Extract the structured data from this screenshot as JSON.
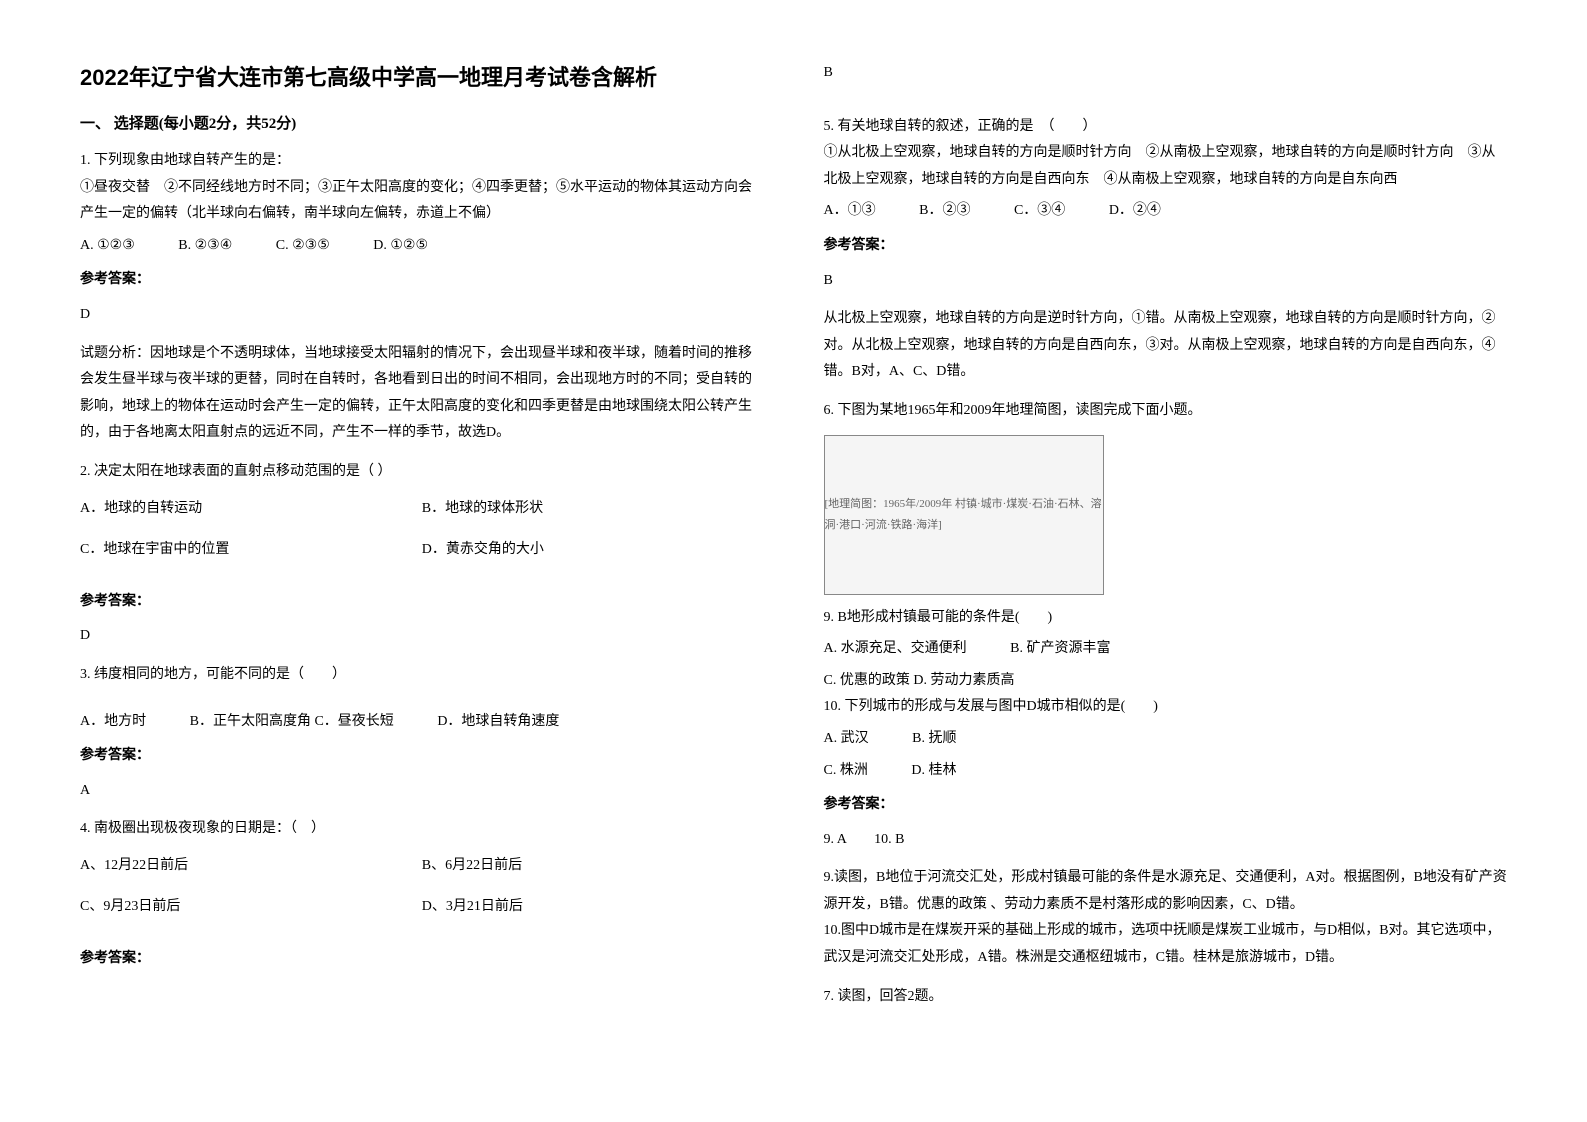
{
  "title": "2022年辽宁省大连市第七高级中学高一地理月考试卷含解析",
  "section_header": "一、 选择题(每小题2分，共52分)",
  "q1": {
    "stem": "1. 下列现象由地球自转产生的是：",
    "detail": "①昼夜交替　②不同经线地方时不同；③正午太阳高度的变化；④四季更替；⑤水平运动的物体其运动方向会产生一定的偏转（北半球向右偏转，南半球向左偏转，赤道上不偏）",
    "optA": "A. ①②③",
    "optB": "B. ②③④",
    "optC": "C. ②③⑤",
    "optD": "D. ①②⑤",
    "answer_label": "参考答案：",
    "answer": "D",
    "explanation": "试题分析：因地球是个不透明球体，当地球接受太阳辐射的情况下，会出现昼半球和夜半球，随着时间的推移会发生昼半球与夜半球的更替，同时在自转时，各地看到日出的时间不相同，会出现地方时的不同；受自转的影响，地球上的物体在运动时会产生一定的偏转，正午太阳高度的变化和四季更替是由地球围绕太阳公转产生的，由于各地离太阳直射点的远近不同，产生不一样的季节，故选D。"
  },
  "q2": {
    "stem": "2. 决定太阳在地球表面的直射点移动范围的是（ ）",
    "optA": "A．地球的自转运动",
    "optB": "B．地球的球体形状",
    "optC": "C．地球在宇宙中的位置",
    "optD": "D．黄赤交角的大小",
    "answer_label": "参考答案：",
    "answer": "D"
  },
  "q3": {
    "stem": "3. 纬度相同的地方，可能不同的是（　　）",
    "optA": "A．地方时",
    "optB": "B．正午太阳高度角",
    "optC": "C．昼夜长短",
    "optD": "D．地球自转角速度",
    "answer_label": "参考答案：",
    "answer": "A"
  },
  "q4": {
    "stem": "4. 南极圈出现极夜现象的日期是：（　）",
    "optA": "A、12月22日前后",
    "optB": "B、6月22日前后",
    "optC": "C、9月23日前后",
    "optD": "D、3月21日前后",
    "answer_label": "参考答案：",
    "answer": "B"
  },
  "q5": {
    "stem": "5. 有关地球自转的叙述，正确的是　（　　）",
    "detail": "①从北极上空观察，地球自转的方向是顺时针方向　②从南极上空观察，地球自转的方向是顺时针方向　③从北极上空观察，地球自转的方向是自西向东　④从南极上空观察，地球自转的方向是自东向西",
    "optA": "A．①③",
    "optB": "B．②③",
    "optC": "C．③④",
    "optD": "D．②④",
    "answer_label": "参考答案：",
    "answer": "B",
    "explanation": "从北极上空观察，地球自转的方向是逆时针方向，①错。从南极上空观察，地球自转的方向是顺时针方向，②对。从北极上空观察，地球自转的方向是自西向东，③对。从南极上空观察，地球自转的方向是自西向东，④错。B对，A、C、D错。"
  },
  "q6": {
    "stem": "6. 下图为某地1965年和2009年地理简图，读图完成下面小题。",
    "map_label": "[地理简图：1965年/2009年 村镇·城市·煤炭·石油·石林、溶洞·港口·河流·铁路·海洋]",
    "sub9_stem": "9. B地形成村镇最可能的条件是(　　)",
    "sub9_optA": "A. 水源充足、交通便利",
    "sub9_optB": "B. 矿产资源丰富",
    "sub9_optC": "C. 优惠的政策",
    "sub9_optD": "D. 劳动力素质高",
    "sub10_stem": "10. 下列城市的形成与发展与图中D城市相似的是(　　)",
    "sub10_optA": "A. 武汉",
    "sub10_optB": "B. 抚顺",
    "sub10_optC": "C. 株洲",
    "sub10_optD": "D. 桂林",
    "answer_label": "参考答案：",
    "answer": "9. A　　10. B",
    "explanation9": "9.读图，B地位于河流交汇处，形成村镇最可能的条件是水源充足、交通便利，A对。根据图例，B地没有矿产资源开发，B错。优惠的政策 、劳动力素质不是村落形成的影响因素，C、D错。",
    "explanation10": "10.图中D城市是在煤炭开采的基础上形成的城市，选项中抚顺是煤炭工业城市，与D相似，B对。其它选项中，武汉是河流交汇处形成，A错。株洲是交通枢纽城市，C错。桂林是旅游城市，D错。"
  },
  "q7": {
    "stem": "7. 读图，回答2题。"
  }
}
